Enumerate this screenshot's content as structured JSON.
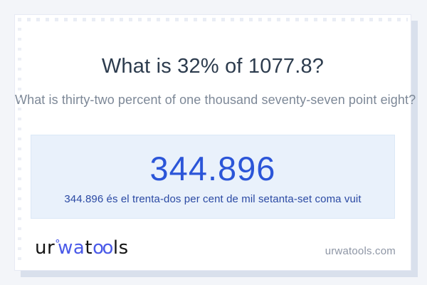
{
  "card": {
    "title": "What is 32% of 1077.8?",
    "subtitle": "What is thirty-two percent of one thousand seventy-seven point eight?",
    "answer": {
      "value": "344.896",
      "sentence": "344.896 és el trenta-dos per cent de mil setanta-set coma vuit"
    },
    "footer": {
      "logo": {
        "ur": "ur",
        "ring": "°",
        "wa": "wa",
        "t": "t",
        "oo": "oo",
        "ls": "ls"
      },
      "domain": "urwatools.com"
    }
  },
  "colors": {
    "page_bg": "#f3f5f9",
    "card_bg": "#ffffff",
    "card_shadow": "#d9e0ec",
    "title": "#2d3c4e",
    "subtitle": "#7d8897",
    "answer_box_bg": "#e9f1fb",
    "answer_value": "#2b55d8",
    "answer_sentence": "#2a49a3",
    "logo_blue": "#4a5ae8",
    "domain_text": "#8e96a5"
  }
}
